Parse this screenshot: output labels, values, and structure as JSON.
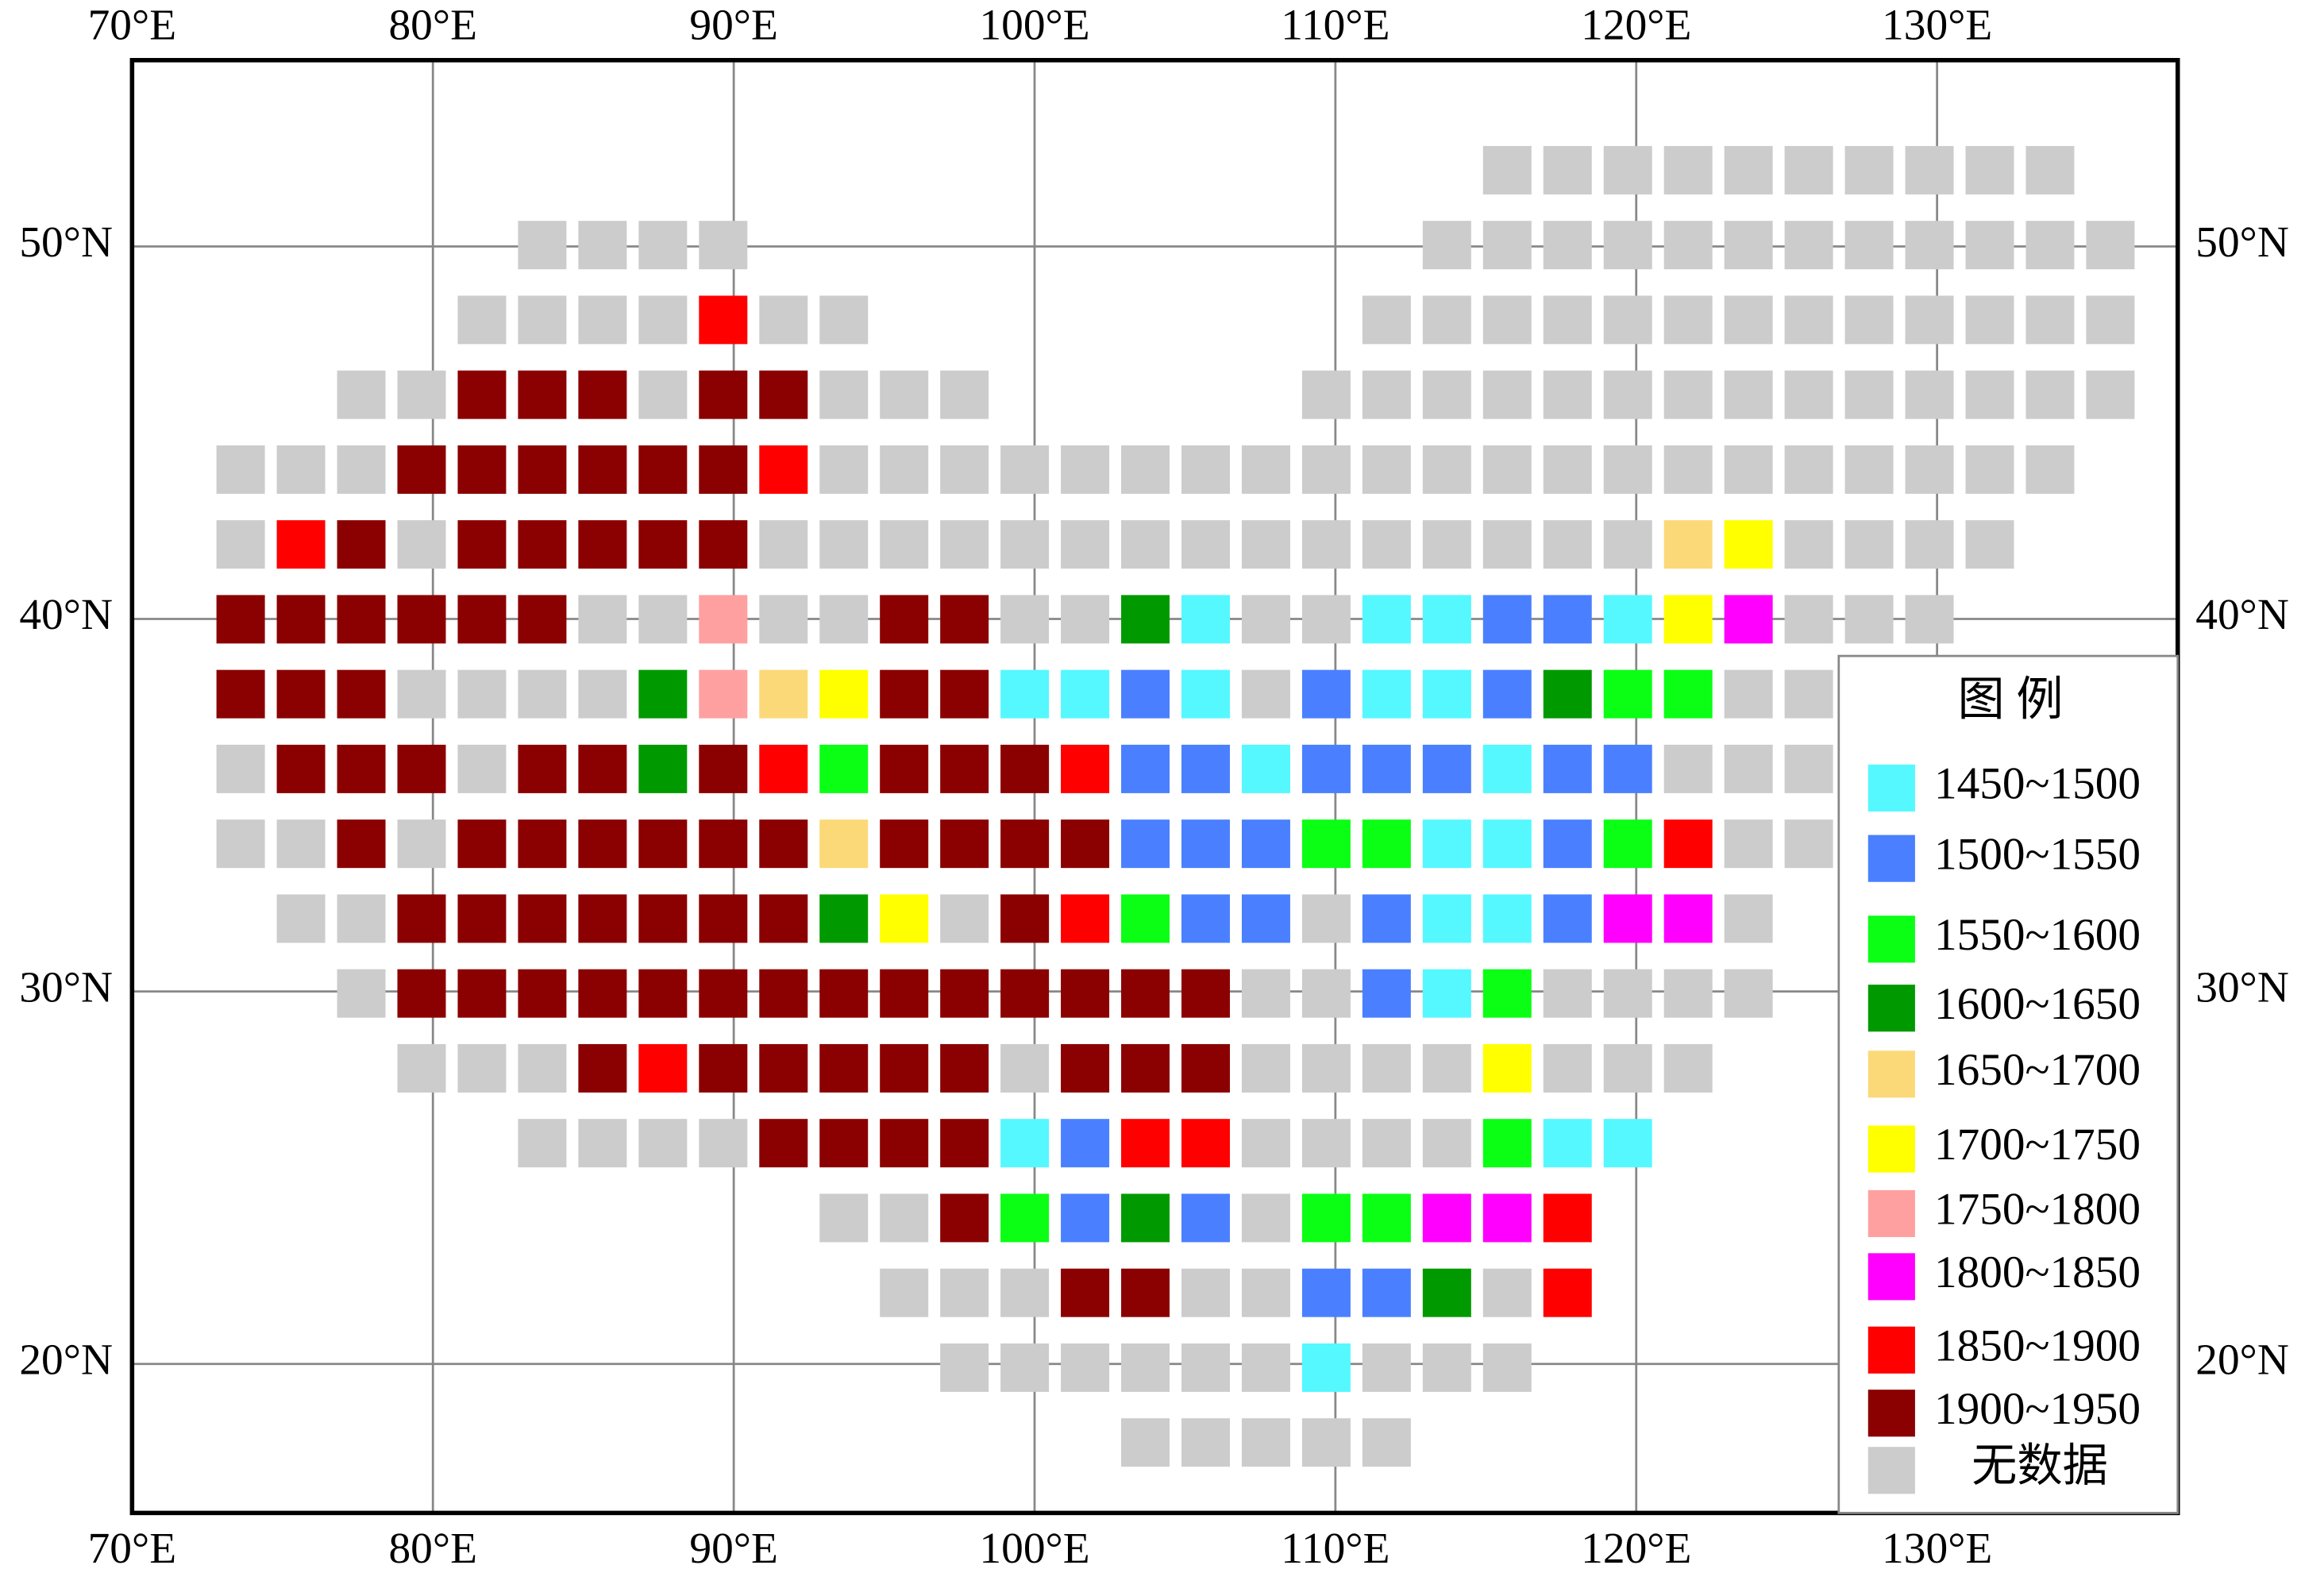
{
  "chart_data": {
    "type": "grid-map",
    "legend_title": "图 例",
    "classes": [
      {
        "label": "1450~1500",
        "color": "#55f8ff"
      },
      {
        "label": "1500~1550",
        "color": "#4a80ff"
      },
      {
        "label": "1550~1600",
        "color": "#0aff14"
      },
      {
        "label": "1600~1650",
        "color": "#009a00"
      },
      {
        "label": "1650~1700",
        "color": "#fcd978"
      },
      {
        "label": "1700~1750",
        "color": "#ffff00"
      },
      {
        "label": "1750~1800",
        "color": "#ffa0a0"
      },
      {
        "label": "1800~1850",
        "color": "#ff00ff"
      },
      {
        "label": "1850~1900",
        "color": "#ff0000"
      },
      {
        "label": "1900~1950",
        "color": "#8b0000"
      },
      {
        "label": "无数据",
        "color": "#cccccc"
      }
    ],
    "cells": [
      [
        null,
        null,
        null,
        null,
        null,
        null,
        null,
        null,
        null,
        null,
        null,
        null,
        null,
        null,
        null,
        null,
        null,
        null,
        null,
        null,
        null,
        10,
        10,
        10,
        10,
        10,
        10,
        10,
        10,
        10,
        10,
        null
      ],
      [
        null,
        null,
        null,
        null,
        null,
        10,
        10,
        10,
        10,
        null,
        null,
        null,
        null,
        null,
        null,
        null,
        null,
        null,
        null,
        null,
        10,
        10,
        10,
        10,
        10,
        10,
        10,
        10,
        10,
        10,
        10,
        10
      ],
      [
        null,
        null,
        null,
        null,
        10,
        10,
        10,
        10,
        8,
        10,
        10,
        null,
        null,
        null,
        null,
        null,
        null,
        null,
        null,
        10,
        10,
        10,
        10,
        10,
        10,
        10,
        10,
        10,
        10,
        10,
        10,
        10
      ],
      [
        null,
        null,
        10,
        10,
        9,
        9,
        9,
        10,
        9,
        9,
        10,
        10,
        10,
        null,
        null,
        null,
        null,
        null,
        10,
        10,
        10,
        10,
        10,
        10,
        10,
        10,
        10,
        10,
        10,
        10,
        10,
        10
      ],
      [
        10,
        10,
        10,
        9,
        9,
        9,
        9,
        9,
        9,
        8,
        10,
        10,
        10,
        10,
        10,
        10,
        10,
        10,
        10,
        10,
        10,
        10,
        10,
        10,
        10,
        10,
        10,
        10,
        10,
        10,
        10,
        null
      ],
      [
        10,
        8,
        9,
        10,
        9,
        9,
        9,
        9,
        9,
        10,
        10,
        10,
        10,
        10,
        10,
        10,
        10,
        10,
        10,
        10,
        10,
        10,
        10,
        10,
        4,
        5,
        10,
        10,
        10,
        10,
        null,
        null
      ],
      [
        9,
        9,
        9,
        9,
        9,
        9,
        10,
        10,
        6,
        10,
        10,
        9,
        9,
        10,
        10,
        3,
        0,
        10,
        10,
        0,
        0,
        1,
        1,
        0,
        5,
        7,
        10,
        10,
        10,
        null,
        null,
        null
      ],
      [
        9,
        9,
        9,
        10,
        10,
        10,
        10,
        3,
        6,
        4,
        5,
        9,
        9,
        0,
        0,
        1,
        0,
        10,
        1,
        0,
        0,
        1,
        3,
        2,
        2,
        10,
        10,
        null,
        null,
        null,
        null,
        null
      ],
      [
        10,
        9,
        9,
        9,
        10,
        9,
        9,
        3,
        9,
        8,
        2,
        9,
        9,
        9,
        8,
        1,
        1,
        0,
        1,
        1,
        1,
        0,
        1,
        1,
        10,
        10,
        10,
        null,
        null,
        null,
        null,
        null
      ],
      [
        10,
        10,
        9,
        10,
        9,
        9,
        9,
        9,
        9,
        9,
        4,
        9,
        9,
        9,
        9,
        1,
        1,
        1,
        2,
        2,
        0,
        0,
        1,
        2,
        8,
        10,
        10,
        null,
        null,
        null,
        null,
        null
      ],
      [
        null,
        10,
        10,
        9,
        9,
        9,
        9,
        9,
        9,
        9,
        3,
        5,
        10,
        9,
        8,
        2,
        1,
        1,
        10,
        1,
        0,
        0,
        1,
        7,
        7,
        10,
        null,
        null,
        null,
        null,
        null,
        null
      ],
      [
        null,
        null,
        10,
        9,
        9,
        9,
        9,
        9,
        9,
        9,
        9,
        9,
        9,
        9,
        9,
        9,
        9,
        10,
        10,
        1,
        0,
        2,
        10,
        10,
        10,
        10,
        null,
        null,
        null,
        null,
        null,
        null
      ],
      [
        null,
        null,
        null,
        10,
        10,
        10,
        9,
        8,
        9,
        9,
        9,
        9,
        9,
        10,
        9,
        9,
        9,
        10,
        10,
        10,
        10,
        5,
        10,
        10,
        10,
        null,
        null,
        null,
        null,
        null,
        null,
        null
      ],
      [
        null,
        null,
        null,
        null,
        null,
        10,
        10,
        10,
        10,
        9,
        9,
        9,
        9,
        0,
        1,
        8,
        8,
        10,
        10,
        10,
        10,
        2,
        0,
        0,
        null,
        null,
        null,
        null,
        null,
        null,
        null,
        null
      ],
      [
        null,
        null,
        null,
        null,
        null,
        null,
        null,
        null,
        null,
        null,
        10,
        10,
        9,
        2,
        1,
        3,
        1,
        10,
        2,
        2,
        7,
        7,
        8,
        null,
        null,
        null,
        null,
        null,
        null,
        null,
        null,
        null
      ],
      [
        null,
        null,
        null,
        null,
        null,
        null,
        null,
        null,
        null,
        null,
        null,
        10,
        10,
        10,
        9,
        9,
        10,
        10,
        1,
        1,
        3,
        10,
        8,
        null,
        null,
        null,
        null,
        null,
        null,
        null,
        null,
        null
      ],
      [
        null,
        null,
        null,
        null,
        null,
        null,
        null,
        null,
        null,
        null,
        null,
        null,
        10,
        10,
        10,
        10,
        10,
        10,
        0,
        10,
        10,
        10,
        null,
        null,
        null,
        null,
        null,
        null,
        null,
        null,
        null,
        null
      ],
      [
        null,
        null,
        null,
        null,
        null,
        null,
        null,
        null,
        null,
        null,
        null,
        null,
        null,
        null,
        null,
        10,
        10,
        10,
        10,
        10,
        null,
        null,
        null,
        null,
        null,
        null,
        null,
        null,
        null,
        null,
        null,
        null
      ]
    ],
    "xlim": [
      70,
      138
    ],
    "ylim": [
      16,
      55
    ],
    "xticks": [
      {
        "value": 70,
        "label": "70°E"
      },
      {
        "value": 80,
        "label": "80°E"
      },
      {
        "value": 90,
        "label": "90°E"
      },
      {
        "value": 100,
        "label": "100°E"
      },
      {
        "value": 110,
        "label": "110°E"
      },
      {
        "value": 120,
        "label": "120°E"
      },
      {
        "value": 130,
        "label": "130°E"
      }
    ],
    "yticks": [
      {
        "value": 50,
        "label": "50°N"
      },
      {
        "value": 40,
        "label": "40°N"
      },
      {
        "value": 30,
        "label": "30°N"
      },
      {
        "value": 20,
        "label": "20°N"
      }
    ],
    "grid": true
  }
}
